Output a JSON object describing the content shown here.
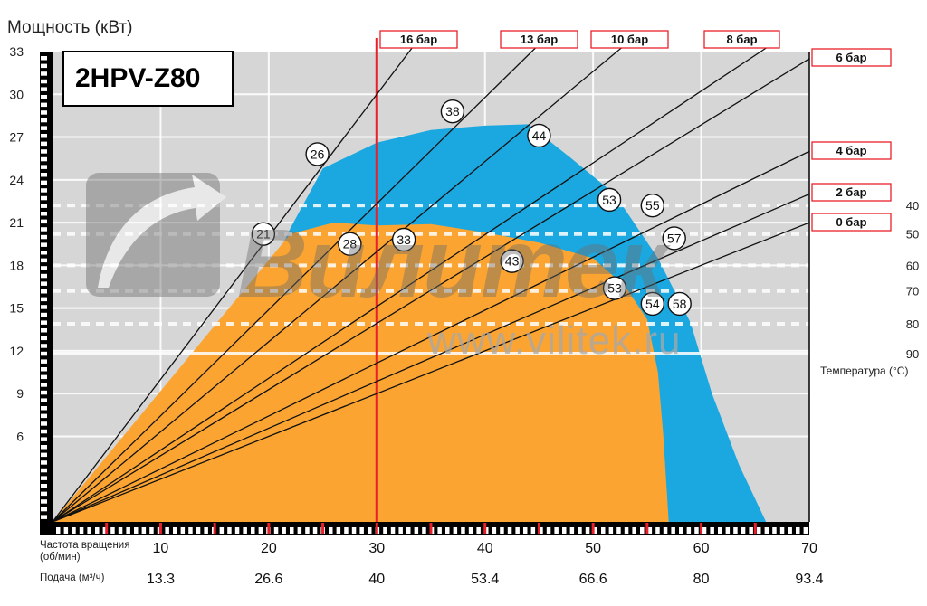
{
  "chart_data": {
    "type": "area",
    "model": "2HPV-Z80",
    "ylabel": "Мощность (кВт)",
    "ylim": [
      0,
      33
    ],
    "y_ticks": [
      6,
      9,
      12,
      15,
      18,
      21,
      24,
      27,
      30,
      33
    ],
    "xlim": [
      0,
      70
    ],
    "x_ticks": [
      10,
      20,
      30,
      40,
      50,
      60,
      70
    ],
    "xlabel_rpm": "Частота вращения\n(об/мин)",
    "xlabel_flow": "Подача (м³/ч)",
    "flow_ticks": [
      "13.3",
      "26.6",
      "40",
      "53.4",
      "66.6",
      "80",
      "93.4"
    ],
    "colors": {
      "orange": "#fba431",
      "blue": "#1ba8e0",
      "background": "#d6d6d6",
      "red": "#e8202a"
    },
    "orange_region": [
      [
        0,
        0
      ],
      [
        22,
        20.2
      ],
      [
        26,
        21
      ],
      [
        30,
        20.8
      ],
      [
        35,
        20.9
      ],
      [
        40,
        20.3
      ],
      [
        45,
        19.6
      ],
      [
        50,
        18.5
      ],
      [
        53,
        16.5
      ],
      [
        55,
        14.2
      ],
      [
        56,
        10.5
      ],
      [
        56.5,
        6
      ],
      [
        57,
        0
      ]
    ],
    "blue_region": [
      [
        0,
        0
      ],
      [
        19.6,
        16.5
      ],
      [
        22,
        20.6
      ],
      [
        25,
        24.8
      ],
      [
        30,
        26.6
      ],
      [
        35,
        27.5
      ],
      [
        40,
        27.8
      ],
      [
        44,
        27.9
      ],
      [
        48,
        25.5
      ],
      [
        52,
        23
      ],
      [
        56,
        18.5
      ],
      [
        59,
        14
      ],
      [
        61,
        9
      ],
      [
        63.5,
        4
      ],
      [
        66,
        0
      ]
    ],
    "pressure_lines": [
      {
        "label": "16 бар",
        "to": [
          33.5,
          33.5
        ]
      },
      {
        "label": "13 бар",
        "to": [
          45,
          33.5
        ]
      },
      {
        "label": "10 бар",
        "to": [
          53,
          33.5
        ]
      },
      {
        "label": "8 бар",
        "to": [
          66.5,
          33.5
        ]
      },
      {
        "label": "6 бар",
        "to": [
          70,
          32.5
        ]
      },
      {
        "label": "4 бар",
        "to": [
          70,
          26
        ]
      },
      {
        "label": "2 бар",
        "to": [
          70,
          23
        ]
      },
      {
        "label": "0 бар",
        "to": [
          70,
          21
        ]
      }
    ],
    "max_speed_rpm": 30,
    "temperature_title": "Температура (°C)",
    "temperature_lines": [
      {
        "label": "40",
        "y": 22.2,
        "dashed": true
      },
      {
        "label": "50",
        "y": 20.2,
        "dashed": true
      },
      {
        "label": "60",
        "y": 18,
        "dashed": true
      },
      {
        "label": "70",
        "y": 16.2,
        "dashed": true
      },
      {
        "label": "80",
        "y": 13.9,
        "dashed": true
      },
      {
        "label": "90",
        "y": 11.8,
        "dashed": false
      }
    ],
    "markers": [
      {
        "label": "38",
        "x": 37,
        "y": 28.8
      },
      {
        "label": "44",
        "x": 45,
        "y": 27.1
      },
      {
        "label": "26",
        "x": 24.5,
        "y": 25.8
      },
      {
        "label": "53",
        "x": 51.5,
        "y": 22.6
      },
      {
        "label": "55",
        "x": 55.5,
        "y": 22.2
      },
      {
        "label": "21",
        "x": 19.5,
        "y": 20.2
      },
      {
        "label": "28",
        "x": 27.5,
        "y": 19.5
      },
      {
        "label": "33",
        "x": 32.5,
        "y": 19.8
      },
      {
        "label": "57",
        "x": 57.5,
        "y": 19.9
      },
      {
        "label": "43",
        "x": 42.5,
        "y": 18.3
      },
      {
        "label": "53",
        "x": 52,
        "y": 16.4
      },
      {
        "label": "54",
        "x": 55.5,
        "y": 15.3
      },
      {
        "label": "58",
        "x": 58,
        "y": 15.3
      }
    ]
  },
  "watermark": {
    "brand": "Вилитек",
    "url": "www.vilitek.ru"
  }
}
